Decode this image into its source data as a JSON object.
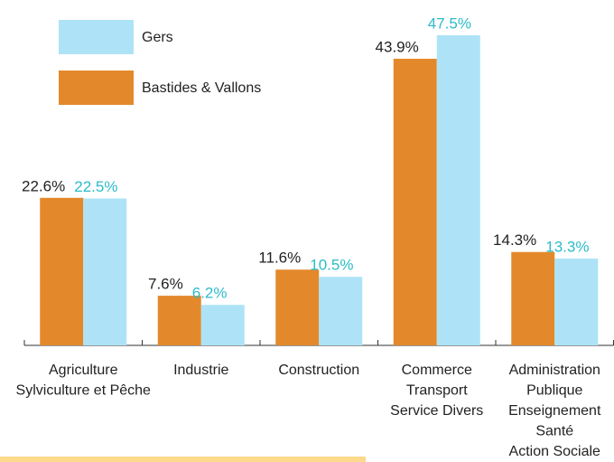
{
  "chart_data": {
    "type": "bar",
    "categories": [
      [
        "Agriculture",
        "Sylviculture et Pêche"
      ],
      [
        "Industrie"
      ],
      [
        "Construction"
      ],
      [
        "Commerce",
        "Transport",
        "Service Divers"
      ],
      [
        "Administration",
        "Publique",
        "Enseignement",
        "Santé",
        "Action Sociale"
      ]
    ],
    "series": [
      {
        "name": "Bastides & Vallons",
        "color": "#e3892b",
        "label_color": "#222222",
        "values": [
          22.6,
          7.6,
          11.6,
          43.9,
          14.3
        ],
        "value_labels": [
          "22.6%",
          "7.6%",
          "11.6%",
          "43.9%",
          "14.3%"
        ]
      },
      {
        "name": "Gers",
        "color": "#aee3f7",
        "label_color": "#2bbcc9",
        "values": [
          22.5,
          6.2,
          10.5,
          47.5,
          13.3
        ],
        "value_labels": [
          "22.5%",
          "6.2%",
          "10.5%",
          "47.5%",
          "13.3%"
        ]
      }
    ],
    "legend_order": [
      1,
      0
    ]
  }
}
